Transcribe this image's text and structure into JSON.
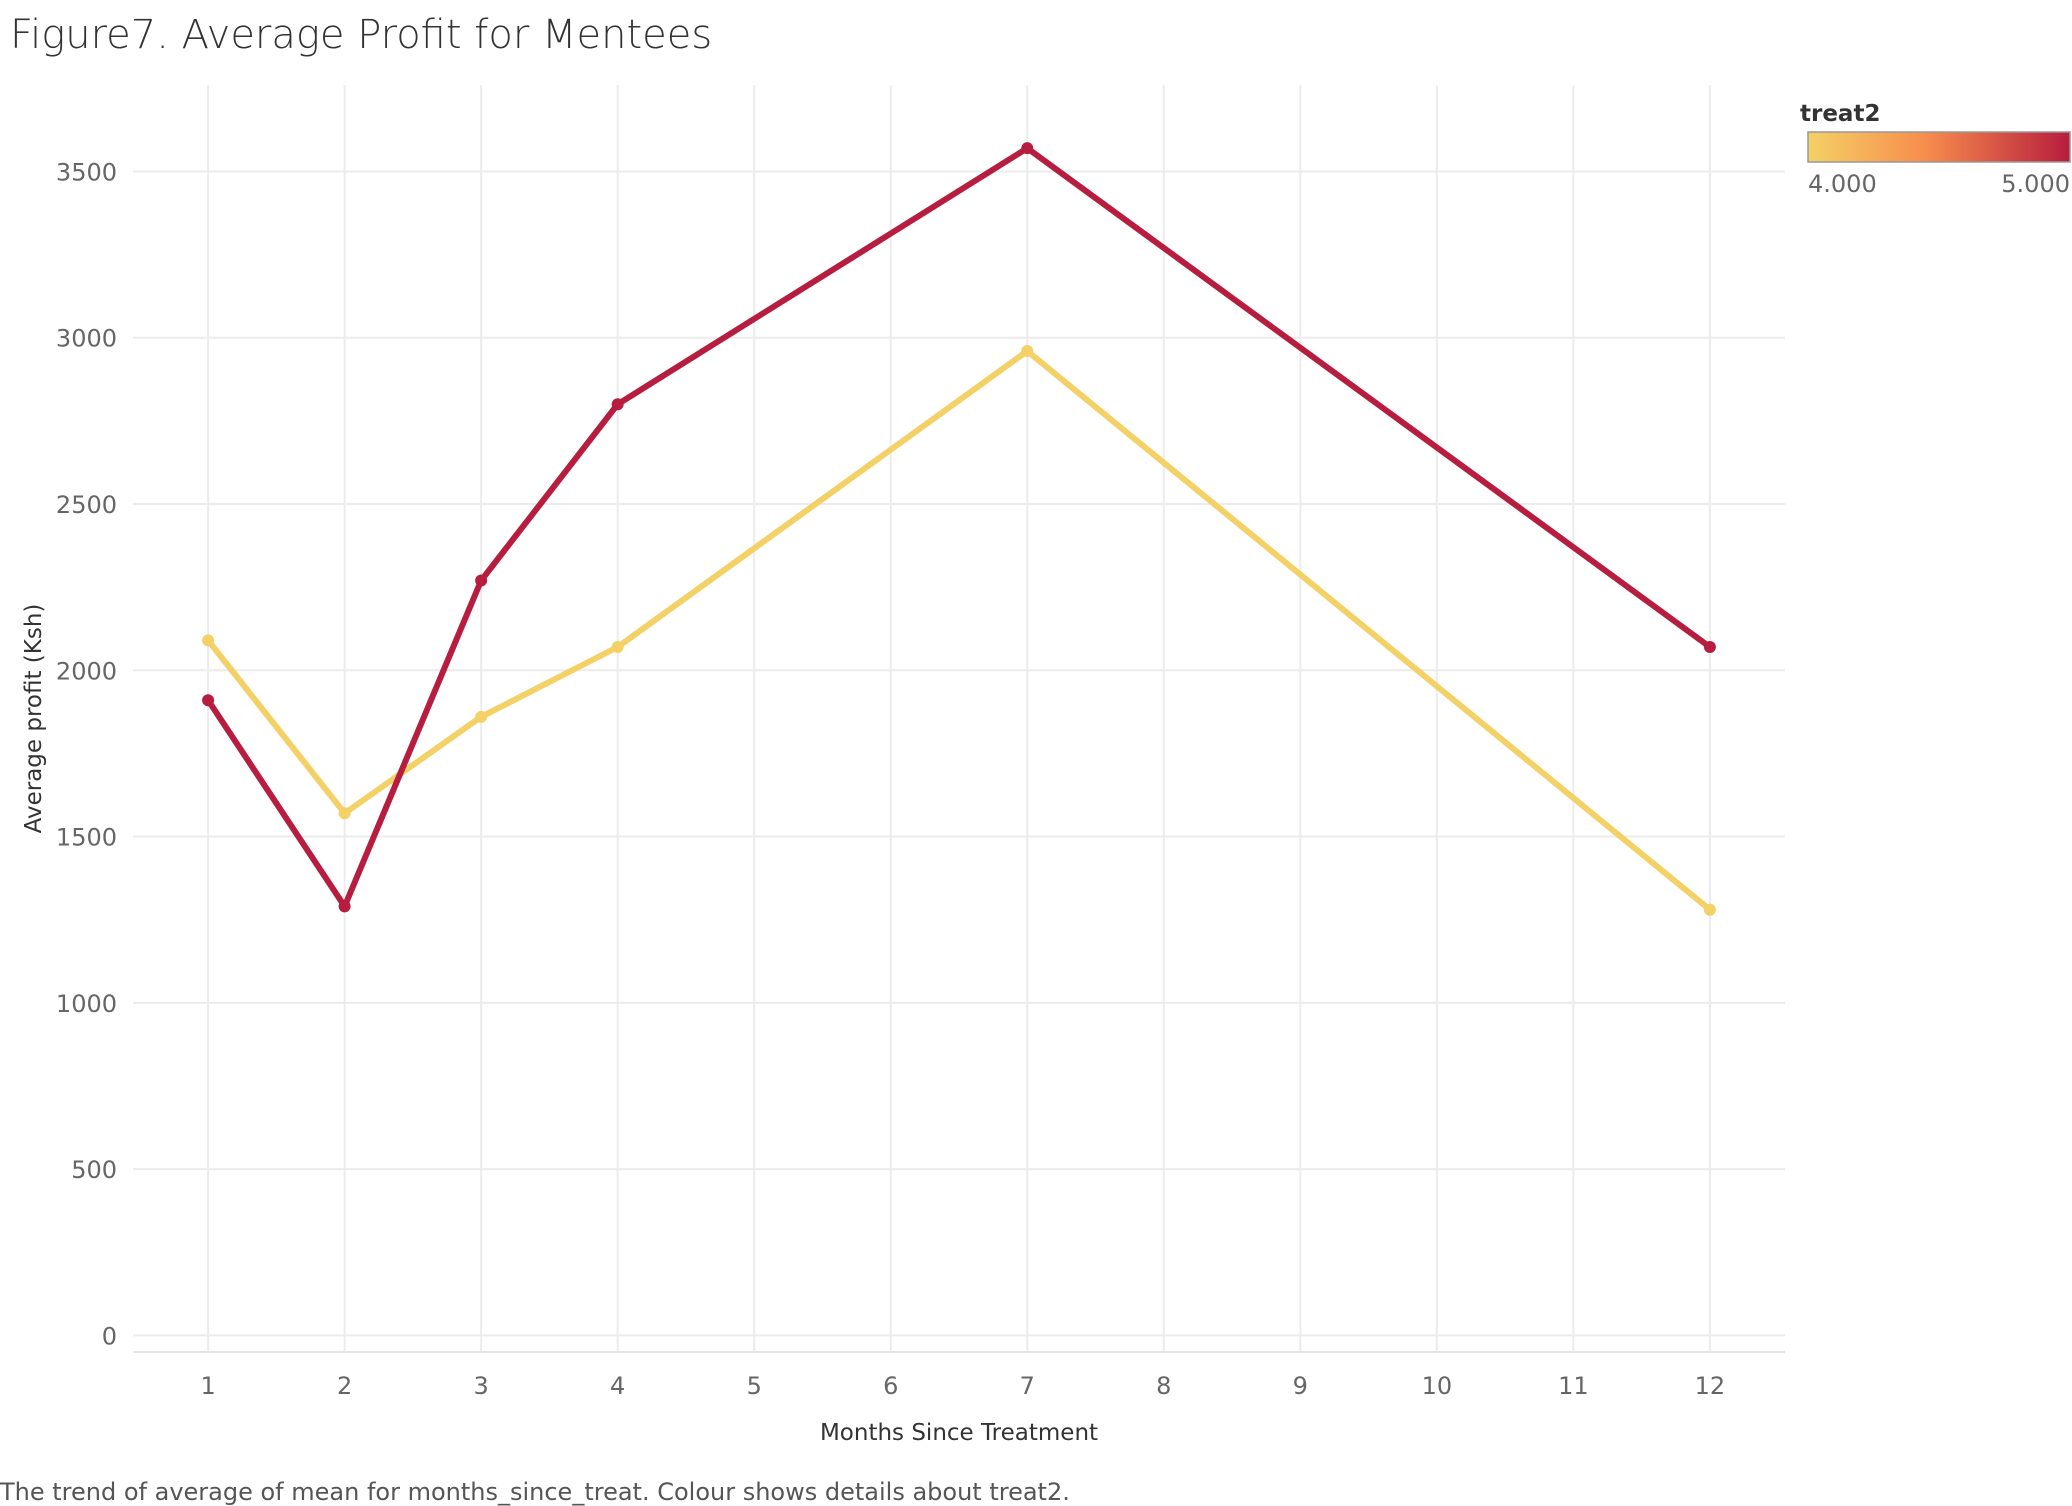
{
  "chart_data": {
    "type": "line",
    "title": "Figure7. Average Profit for Mentees",
    "xlabel": "Months Since Treatment",
    "ylabel": "Average profit (Ksh)",
    "caption": "The trend of average of mean for months_since_treat.  Colour shows details about treat2.",
    "x_ticks": [
      "1",
      "2",
      "3",
      "4",
      "5",
      "6",
      "7",
      "8",
      "9",
      "10",
      "11",
      "12"
    ],
    "y_ticks": [
      "0",
      "500",
      "1000",
      "1500",
      "2000",
      "2500",
      "3000",
      "3500"
    ],
    "xlim": [
      0.45,
      12.55
    ],
    "ylim": [
      -50,
      3760
    ],
    "grid": true,
    "legend": {
      "title": "treat2",
      "placement": "top-right",
      "min_label": "4.000",
      "max_label": "5.000",
      "min_color": "#f4d166",
      "mid_color": "#f78c4c",
      "max_color": "#b71d3e"
    },
    "series": [
      {
        "treat2": 4,
        "color": "#f4d166",
        "x": [
          1,
          2,
          3,
          4,
          7,
          12
        ],
        "y": [
          2090,
          1570,
          1860,
          2070,
          2960,
          1280
        ]
      },
      {
        "treat2": 5,
        "color": "#b71d3e",
        "x": [
          1,
          2,
          3,
          4,
          7,
          12
        ],
        "y": [
          1910,
          1290,
          2270,
          2800,
          3570,
          2070
        ]
      }
    ]
  }
}
